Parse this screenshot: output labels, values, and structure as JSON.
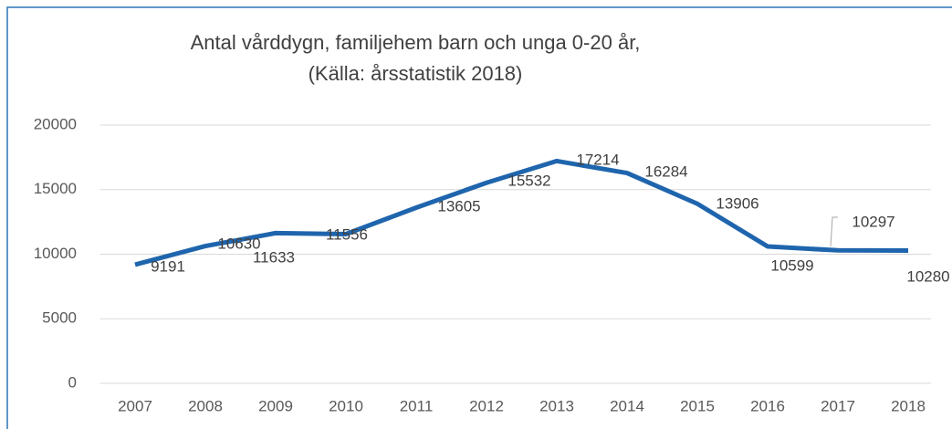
{
  "chart_data": {
    "type": "line",
    "title": "Antal vårddygn, familjehem barn och unga 0-20 år,",
    "subtitle": "(Källa: årsstatistik 2018)",
    "categories": [
      "2007",
      "2008",
      "2009",
      "2010",
      "2011",
      "2012",
      "2013",
      "2014",
      "2015",
      "2016",
      "2017",
      "2018"
    ],
    "series": [
      {
        "name": "Antal vårddygn",
        "color": "#1f65ad",
        "values": [
          9191,
          10630,
          11633,
          11556,
          13605,
          15532,
          17214,
          16284,
          13906,
          10599,
          10297,
          10280
        ]
      }
    ],
    "ylim": [
      0,
      20000
    ],
    "yticks": [
      0,
      5000,
      10000,
      15000,
      20000
    ],
    "grid": true
  }
}
